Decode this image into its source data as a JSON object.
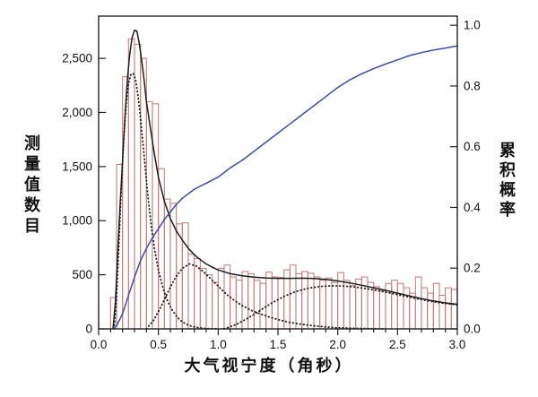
{
  "chart_data": {
    "type": "bar",
    "title": "",
    "xlabel": "大气视宁度（角秒）",
    "ylabel_left": "测量值数目",
    "ylabel_right": "累积概率",
    "xlim": [
      0.0,
      3.0
    ],
    "ylim_left": [
      0,
      2890
    ],
    "ylim_right": [
      0,
      1.03
    ],
    "grid": false,
    "legend": "none",
    "x_ticks": {
      "values": [
        0.0,
        0.5,
        1.0,
        1.5,
        2.0,
        2.5,
        3.0
      ],
      "labels": [
        "0.0",
        "0.5",
        "1.0",
        "1.5",
        "2.0",
        "2.5",
        "3.0"
      ],
      "minor_step": 0.1
    },
    "y_left_ticks": {
      "values": [
        0,
        500,
        1000,
        1500,
        2000,
        2500
      ],
      "labels": [
        "0",
        "500",
        "1,000",
        "1,500",
        "2,000",
        "2,500"
      ]
    },
    "y_right_ticks": {
      "values": [
        0.0,
        0.2,
        0.4,
        0.6,
        0.8,
        1.0
      ],
      "labels": [
        "0.0",
        "0.2",
        "0.4",
        "0.6",
        "0.8",
        "1.0"
      ]
    },
    "colors": {
      "histogram_edge": "#c28380",
      "fit_curves": "#1c1c1c",
      "cumulative_curve": "#3d4ba6",
      "axis": "#222222"
    },
    "histogram": {
      "name": "seeing-measurement-histogram",
      "bin_start": 0.1,
      "bin_width": 0.05,
      "counts": [
        290,
        1520,
        2330,
        2680,
        2630,
        2500,
        2100,
        2080,
        1480,
        1200,
        1160,
        970,
        980,
        690,
        650,
        560,
        500,
        430,
        560,
        590,
        480,
        450,
        530,
        510,
        450,
        420,
        525,
        480,
        475,
        545,
        590,
        510,
        530,
        515,
        480,
        450,
        470,
        430,
        520,
        450,
        400,
        460,
        480,
        430,
        390,
        350,
        420,
        450,
        420,
        380,
        330,
        480,
        380,
        330,
        420,
        310,
        380,
        365
      ]
    },
    "series": [
      {
        "name": "total-fit",
        "style": "solid",
        "axis": "left",
        "points": [
          [
            0.12,
            0
          ],
          [
            0.14,
            250
          ],
          [
            0.16,
            700
          ],
          [
            0.18,
            1150
          ],
          [
            0.2,
            1560
          ],
          [
            0.22,
            1950
          ],
          [
            0.24,
            2300
          ],
          [
            0.26,
            2540
          ],
          [
            0.28,
            2690
          ],
          [
            0.3,
            2760
          ],
          [
            0.32,
            2750
          ],
          [
            0.34,
            2640
          ],
          [
            0.36,
            2480
          ],
          [
            0.38,
            2300
          ],
          [
            0.4,
            2100
          ],
          [
            0.43,
            1880
          ],
          [
            0.46,
            1660
          ],
          [
            0.5,
            1400
          ],
          [
            0.55,
            1180
          ],
          [
            0.6,
            1020
          ],
          [
            0.65,
            905
          ],
          [
            0.7,
            820
          ],
          [
            0.75,
            745
          ],
          [
            0.8,
            685
          ],
          [
            0.85,
            640
          ],
          [
            0.9,
            600
          ],
          [
            0.95,
            570
          ],
          [
            1.0,
            545
          ],
          [
            1.1,
            510
          ],
          [
            1.2,
            490
          ],
          [
            1.3,
            478
          ],
          [
            1.4,
            470
          ],
          [
            1.5,
            467
          ],
          [
            1.6,
            467
          ],
          [
            1.7,
            469
          ],
          [
            1.8,
            466
          ],
          [
            1.9,
            458
          ],
          [
            2.0,
            443
          ],
          [
            2.1,
            425
          ],
          [
            2.2,
            403
          ],
          [
            2.3,
            380
          ],
          [
            2.4,
            356
          ],
          [
            2.5,
            330
          ],
          [
            2.6,
            305
          ],
          [
            2.7,
            280
          ],
          [
            2.8,
            258
          ],
          [
            2.9,
            240
          ],
          [
            3.0,
            228
          ]
        ]
      },
      {
        "name": "component-1",
        "style": "dotted",
        "axis": "left",
        "points": [
          [
            0.13,
            0
          ],
          [
            0.15,
            300
          ],
          [
            0.17,
            800
          ],
          [
            0.19,
            1300
          ],
          [
            0.21,
            1750
          ],
          [
            0.23,
            2080
          ],
          [
            0.25,
            2270
          ],
          [
            0.27,
            2350
          ],
          [
            0.29,
            2360
          ],
          [
            0.31,
            2300
          ],
          [
            0.33,
            2150
          ],
          [
            0.35,
            1950
          ],
          [
            0.38,
            1600
          ],
          [
            0.41,
            1250
          ],
          [
            0.44,
            950
          ],
          [
            0.47,
            720
          ],
          [
            0.5,
            540
          ],
          [
            0.54,
            370
          ],
          [
            0.58,
            250
          ],
          [
            0.62,
            165
          ],
          [
            0.66,
            105
          ],
          [
            0.7,
            65
          ],
          [
            0.75,
            35
          ],
          [
            0.8,
            18
          ],
          [
            0.85,
            8
          ],
          [
            0.9,
            3
          ],
          [
            1.0,
            0
          ]
        ]
      },
      {
        "name": "component-2",
        "style": "dotted",
        "axis": "left",
        "points": [
          [
            0.4,
            0
          ],
          [
            0.46,
            80
          ],
          [
            0.52,
            200
          ],
          [
            0.58,
            340
          ],
          [
            0.64,
            470
          ],
          [
            0.7,
            560
          ],
          [
            0.76,
            600
          ],
          [
            0.82,
            580
          ],
          [
            0.88,
            525
          ],
          [
            0.94,
            460
          ],
          [
            1.0,
            395
          ],
          [
            1.06,
            330
          ],
          [
            1.12,
            275
          ],
          [
            1.2,
            215
          ],
          [
            1.28,
            170
          ],
          [
            1.36,
            135
          ],
          [
            1.44,
            105
          ],
          [
            1.52,
            80
          ],
          [
            1.6,
            60
          ],
          [
            1.7,
            42
          ],
          [
            1.8,
            28
          ],
          [
            1.9,
            18
          ],
          [
            2.0,
            10
          ],
          [
            2.2,
            4
          ],
          [
            2.4,
            0
          ]
        ]
      },
      {
        "name": "component-3",
        "style": "dotted",
        "axis": "left",
        "points": [
          [
            1.05,
            0
          ],
          [
            1.15,
            40
          ],
          [
            1.25,
            100
          ],
          [
            1.35,
            170
          ],
          [
            1.45,
            240
          ],
          [
            1.55,
            300
          ],
          [
            1.65,
            345
          ],
          [
            1.75,
            375
          ],
          [
            1.85,
            392
          ],
          [
            1.95,
            398
          ],
          [
            2.05,
            396
          ],
          [
            2.15,
            386
          ],
          [
            2.25,
            370
          ],
          [
            2.35,
            350
          ],
          [
            2.45,
            328
          ],
          [
            2.55,
            305
          ],
          [
            2.65,
            282
          ],
          [
            2.75,
            260
          ],
          [
            2.85,
            242
          ],
          [
            2.95,
            228
          ],
          [
            3.0,
            222
          ]
        ]
      },
      {
        "name": "cumulative-probability",
        "style": "solid",
        "axis": "right",
        "points": [
          [
            0.12,
            0
          ],
          [
            0.15,
            0.01
          ],
          [
            0.2,
            0.05
          ],
          [
            0.25,
            0.11
          ],
          [
            0.3,
            0.17
          ],
          [
            0.35,
            0.225
          ],
          [
            0.4,
            0.265
          ],
          [
            0.45,
            0.3
          ],
          [
            0.5,
            0.33
          ],
          [
            0.55,
            0.36
          ],
          [
            0.6,
            0.385
          ],
          [
            0.65,
            0.41
          ],
          [
            0.7,
            0.43
          ],
          [
            0.8,
            0.46
          ],
          [
            0.9,
            0.48
          ],
          [
            1.0,
            0.5
          ],
          [
            1.1,
            0.53
          ],
          [
            1.2,
            0.555
          ],
          [
            1.3,
            0.585
          ],
          [
            1.4,
            0.615
          ],
          [
            1.5,
            0.645
          ],
          [
            1.6,
            0.675
          ],
          [
            1.7,
            0.705
          ],
          [
            1.8,
            0.735
          ],
          [
            1.9,
            0.765
          ],
          [
            2.0,
            0.795
          ],
          [
            2.1,
            0.82
          ],
          [
            2.2,
            0.84
          ],
          [
            2.3,
            0.857
          ],
          [
            2.4,
            0.872
          ],
          [
            2.5,
            0.886
          ],
          [
            2.6,
            0.9
          ],
          [
            2.7,
            0.91
          ],
          [
            2.8,
            0.918
          ],
          [
            2.9,
            0.925
          ],
          [
            3.0,
            0.932
          ]
        ]
      }
    ]
  }
}
